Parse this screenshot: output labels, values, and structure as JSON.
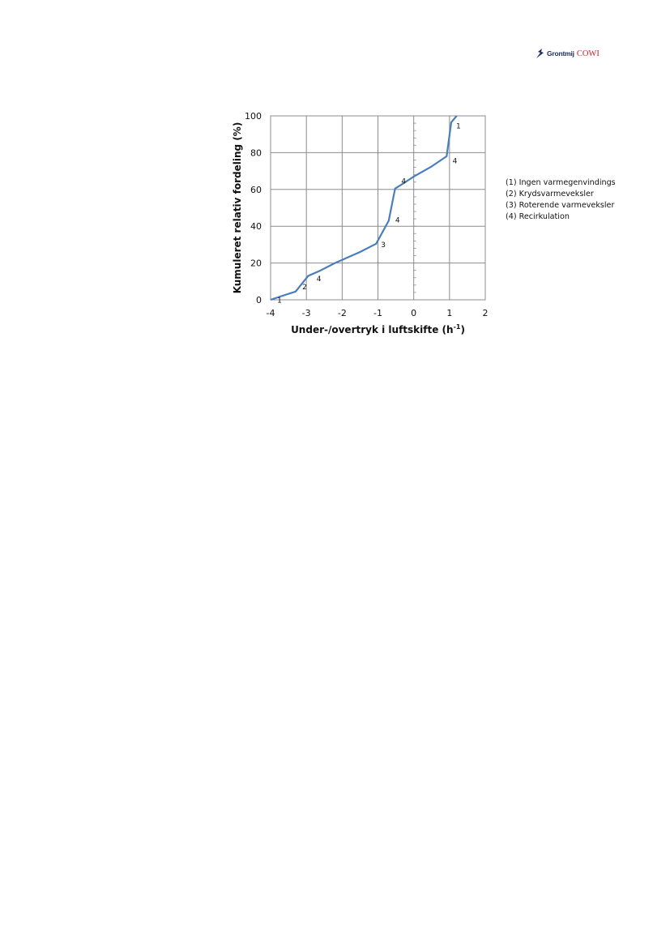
{
  "header": {
    "logo_part1": "Grontmij",
    "logo_part2": "COWI",
    "logo_icon": "grontmij-logo-icon"
  },
  "chart_data": {
    "type": "line",
    "xlabel": "Under-/overtryk i luftskifte (h",
    "xlabel_sup": "-1",
    "xlabel_end": ")",
    "ylabel": "Kumuleret relativ fordeling (%)",
    "xlim": [
      -4,
      2
    ],
    "ylim": [
      0,
      100
    ],
    "xticks": [
      "-4",
      "-3",
      "-2",
      "-1",
      "0",
      "1",
      "2"
    ],
    "yticks": [
      "0",
      "20",
      "40",
      "60",
      "80",
      "100"
    ],
    "grid": true,
    "line_color": "#4a7ebb",
    "series": [
      {
        "x": [
          -4.0,
          -3.7,
          -3.3,
          -2.95,
          -2.6,
          -2.2,
          -1.5,
          -1.05,
          -0.7,
          -0.52,
          -0.35,
          0.0,
          0.5,
          0.92,
          1.05,
          1.2
        ],
        "y": [
          0,
          2,
          4.5,
          13,
          16,
          20,
          26,
          30.5,
          43,
          60.5,
          62.5,
          67,
          72.5,
          78,
          96.5,
          100
        ]
      }
    ],
    "annotations": [
      {
        "text": "1",
        "x": -3.75,
        "y": -0.2
      },
      {
        "text": "2",
        "x": -3.05,
        "y": 7
      },
      {
        "text": "4",
        "x": -2.65,
        "y": 11.5
      },
      {
        "text": "3",
        "x": -0.85,
        "y": 30
      },
      {
        "text": "4",
        "x": -0.45,
        "y": 43.5
      },
      {
        "text": "4",
        "x": -0.28,
        "y": 64.5
      },
      {
        "text": "4",
        "x": 1.15,
        "y": 75.5
      },
      {
        "text": "1",
        "x": 1.25,
        "y": 94.5
      }
    ],
    "legend": [
      "(1) Ingen varmegenvindings",
      "(2) Krydsvarmeveksler",
      "(3) Roterende varmeveksler",
      "(4) Recirkulation"
    ],
    "legend_position": "right"
  }
}
